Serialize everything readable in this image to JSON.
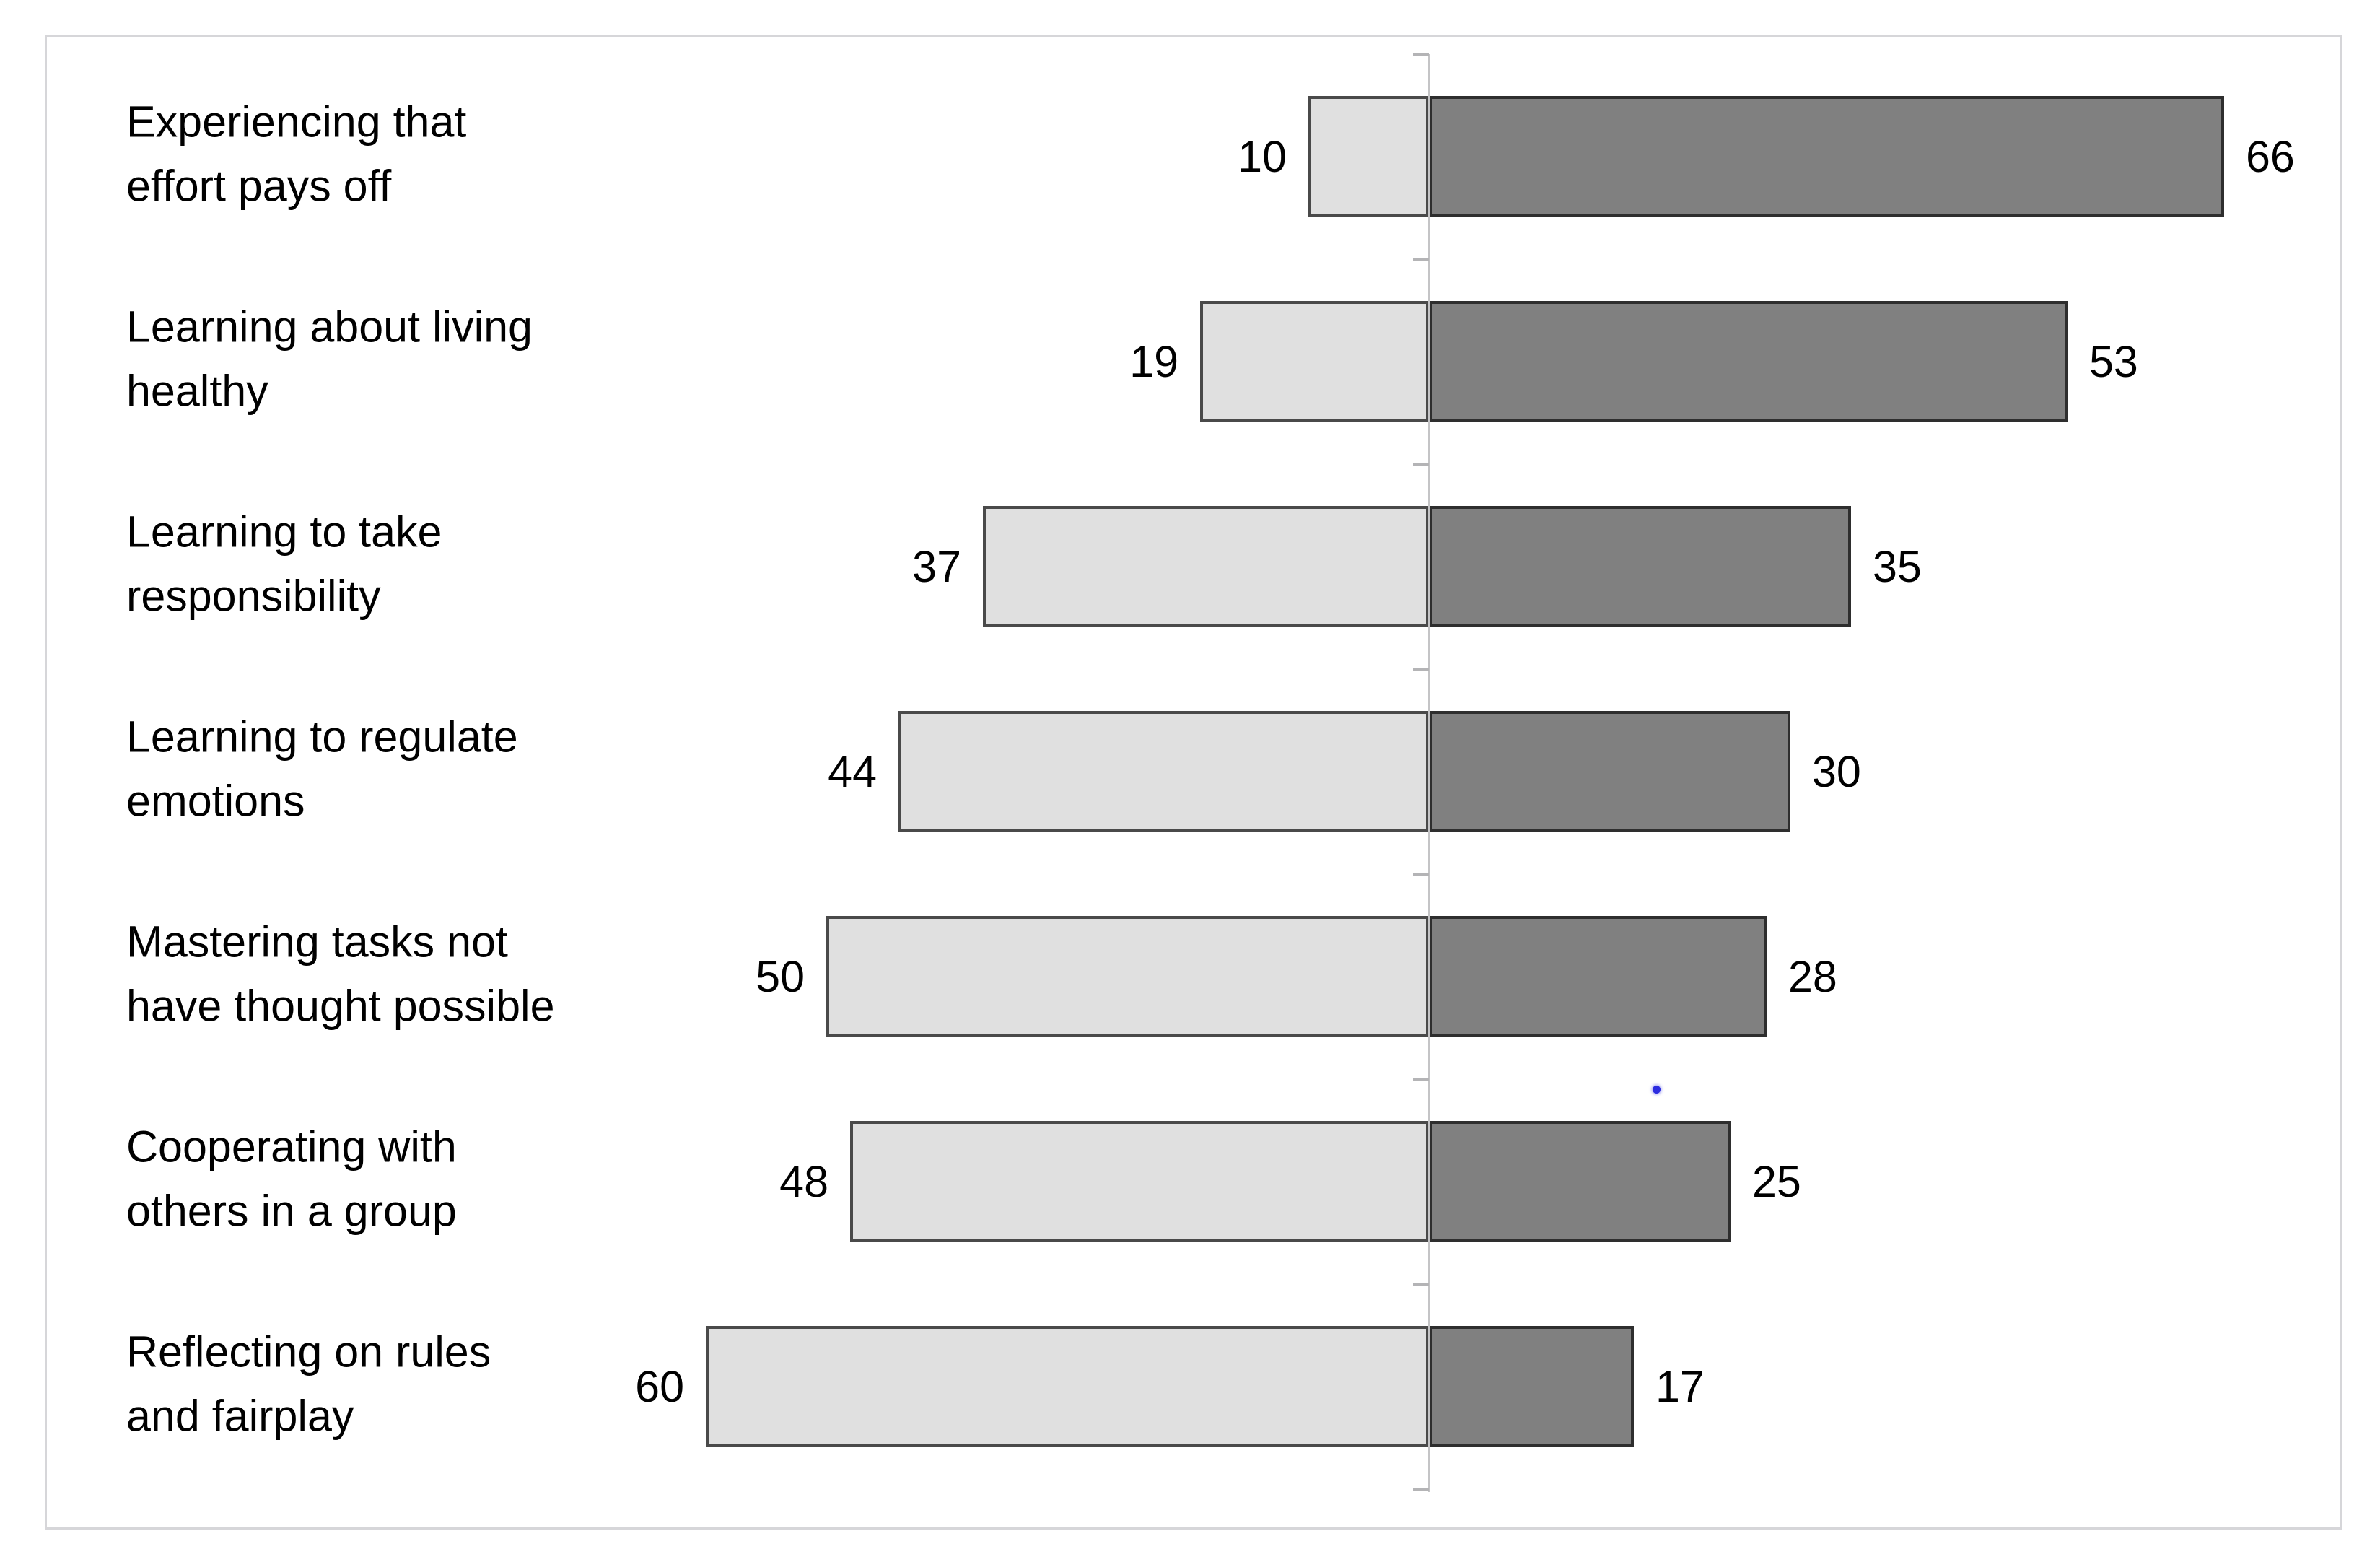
{
  "chart_data": {
    "type": "bar",
    "variant": "diverging-horizontal",
    "title": "",
    "xlabel": "",
    "ylabel": "",
    "legend": "none",
    "grid": false,
    "categories": [
      "Experiencing that effort pays off",
      "Learning about living healthy",
      "Learning to take responsibility",
      "Learning to regulate emotions",
      "Mastering tasks not have thought possible",
      "Cooperating with others in a group",
      "Reflecting on rules and fairplay"
    ],
    "category_label_lines": [
      [
        "Experiencing that",
        "effort pays off"
      ],
      [
        "Learning about living",
        "healthy"
      ],
      [
        "Learning to take",
        "responsibility"
      ],
      [
        "Learning to regulate",
        "emotions"
      ],
      [
        "Mastering tasks not",
        "have thought possible"
      ],
      [
        "Cooperating with",
        "others in a group"
      ],
      [
        "Reflecting on rules",
        "and fairplay"
      ]
    ],
    "series": [
      {
        "name": "left-light-gray",
        "direction": "left",
        "fill_color": "#e0e0e0",
        "border_color": "#4a4a4a",
        "values": [
          10,
          19,
          37,
          44,
          50,
          48,
          60
        ]
      },
      {
        "name": "right-dark-gray",
        "direction": "right",
        "fill_color": "#808080",
        "border_color": "#2e2e2e",
        "values": [
          66,
          53,
          35,
          30,
          28,
          25,
          17
        ]
      }
    ],
    "value_labels": {
      "left": [
        "10",
        "19",
        "37",
        "44",
        "50",
        "48",
        "60"
      ],
      "right": [
        "66",
        "53",
        "35",
        "30",
        "28",
        "25",
        "17"
      ]
    },
    "baseline_value": 0
  },
  "annotations": {
    "stray_dot_color": "#2c2ce0"
  }
}
